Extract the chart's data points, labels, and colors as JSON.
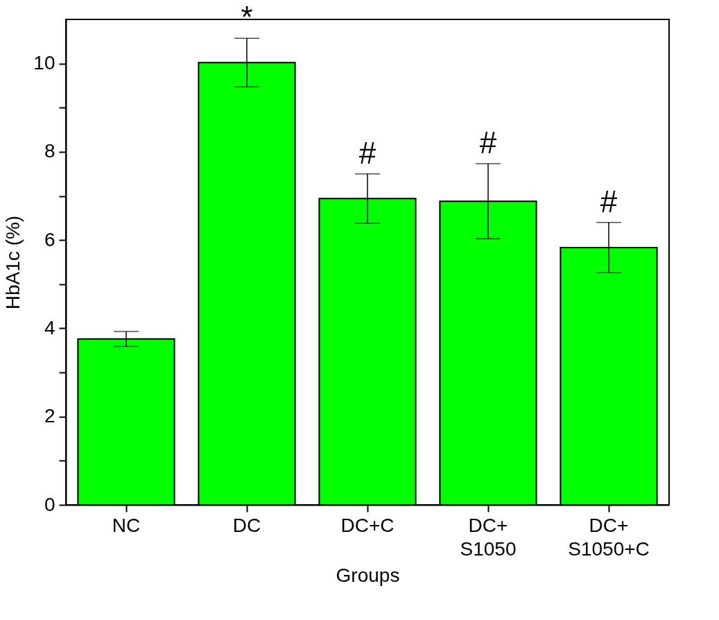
{
  "chart_data": {
    "type": "bar",
    "xlabel": "Groups",
    "ylabel": "HbA1c (%)",
    "categories": [
      "NC",
      "DC",
      "DC+C",
      "DC+\nS1050",
      "DC+\nS1050+C"
    ],
    "series": [
      {
        "color": "#00ff00",
        "values": [
          3.76,
          10.02,
          6.94,
          6.88,
          5.83
        ],
        "errors": [
          0.17,
          0.55,
          0.56,
          0.85,
          0.57
        ]
      }
    ],
    "ylim": [
      0,
      11
    ],
    "yticks": [
      0,
      {
        "value": 1,
        "label": null
      },
      2,
      {
        "value": 3,
        "label": null
      },
      4,
      {
        "value": 5,
        "label": null
      },
      6,
      {
        "value": 7,
        "label": null
      },
      8,
      {
        "value": 9,
        "label": null
      },
      10
    ],
    "annotations": [
      {
        "text": "*",
        "x": "DC",
        "y": 10.57
      },
      {
        "text": "#",
        "x": "DC+C",
        "y": 7.5
      },
      {
        "text": "#",
        "x": "DC+\nS1050",
        "y": 7.73
      },
      {
        "text": "#",
        "x": "DC+\nS1050+C",
        "y": 6.4
      }
    ],
    "grid": false
  }
}
